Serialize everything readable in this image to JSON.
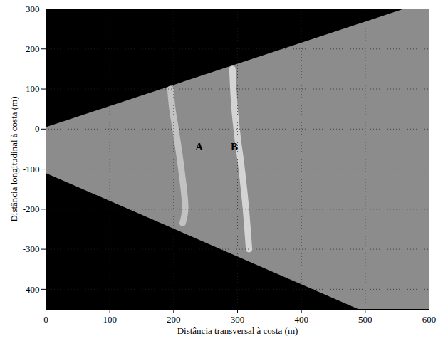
{
  "chart_data": {
    "type": "image",
    "xlabel": "Distância transversal à costa (m)",
    "ylabel": "Distância longitudinal à costa (m)",
    "xlim": [
      0,
      600
    ],
    "ylim": [
      -450,
      300
    ],
    "xticks": [
      0,
      100,
      200,
      300,
      400,
      500,
      600
    ],
    "yticks": [
      -400,
      -300,
      -200,
      -100,
      0,
      100,
      200,
      300
    ],
    "grid": true,
    "color": "#000000",
    "coverage": {
      "color": "#8c8c8c",
      "x": [
        0,
        560,
        600,
        600,
        490,
        0,
        0
      ],
      "y": [
        5,
        300,
        300,
        -450,
        -450,
        -110,
        5
      ]
    },
    "series": [
      {
        "name": "A",
        "color": "#d0d0d0",
        "x": [
          195,
          198,
          203,
          212,
          218,
          214
        ],
        "y": [
          100,
          50,
          0,
          -100,
          -200,
          -235
        ]
      },
      {
        "name": "B",
        "color": "#e6e6e6",
        "x": [
          292,
          295,
          300,
          305,
          312,
          318
        ],
        "y": [
          150,
          60,
          -20,
          -80,
          -180,
          -300
        ]
      }
    ],
    "annotations": [
      {
        "text": "A",
        "x": 240,
        "y": -45
      },
      {
        "text": "B",
        "x": 295,
        "y": -45
      }
    ]
  }
}
